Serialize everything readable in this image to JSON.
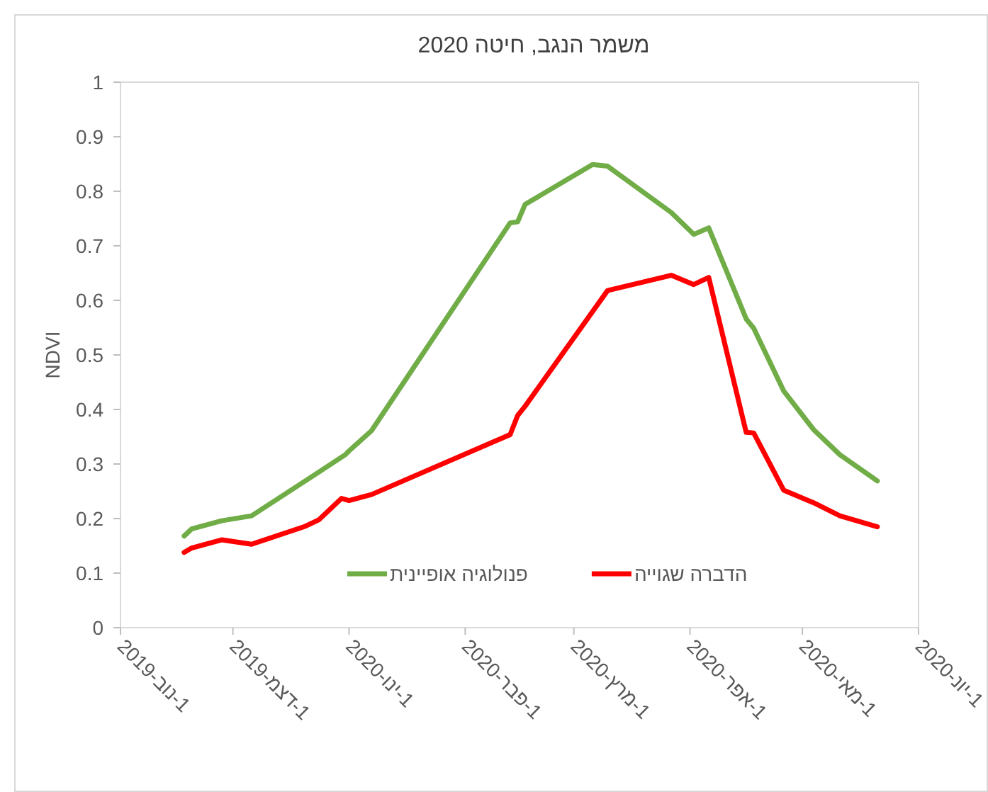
{
  "chart_data": {
    "type": "line",
    "title": "משמר הנגב, חיטה 2020",
    "ylabel": "NDVI",
    "xlim": [
      "2019-11-01",
      "2020-06-01"
    ],
    "xticks": [
      {
        "value": "2019-11-01",
        "label": "1-נוב-2019"
      },
      {
        "value": "2019-12-01",
        "label": "1-דצמ-2019"
      },
      {
        "value": "2020-01-01",
        "label": "1-ינו-2020"
      },
      {
        "value": "2020-02-01",
        "label": "1-פבר-2020"
      },
      {
        "value": "2020-03-01",
        "label": "1-מרץ-2020"
      },
      {
        "value": "2020-04-01",
        "label": "1-אפר-2020"
      },
      {
        "value": "2020-05-01",
        "label": "1-מאי-2020"
      },
      {
        "value": "2020-06-01",
        "label": "1-יונ-2020"
      }
    ],
    "ylim": [
      0,
      1
    ],
    "yticks": [
      0,
      0.1,
      0.2,
      0.3,
      0.4,
      0.5,
      0.6,
      0.7,
      0.8,
      0.9,
      1
    ],
    "legend": "bottom",
    "grid": false,
    "marker": "none",
    "line_style": "solid",
    "series": [
      {
        "name": "פנולוגיה אופיינית",
        "color": "#70ad47",
        "x": [
          "2019-11-18",
          "2019-11-20",
          "2019-11-28",
          "2019-12-06",
          "2019-12-23",
          "2019-12-31",
          "2020-01-01",
          "2020-01-07",
          "2020-02-13",
          "2020-02-15",
          "2020-02-17",
          "2020-03-06",
          "2020-03-10",
          "2020-03-27",
          "2020-04-02",
          "2020-04-06",
          "2020-04-16",
          "2020-04-18",
          "2020-04-26",
          "2020-05-04",
          "2020-05-11",
          "2020-05-21"
        ],
        "values": [
          0.168,
          0.181,
          0.196,
          0.205,
          0.281,
          0.317,
          0.324,
          0.361,
          0.742,
          0.744,
          0.776,
          0.849,
          0.846,
          0.761,
          0.721,
          0.733,
          0.566,
          0.549,
          0.434,
          0.363,
          0.317,
          0.269
        ]
      },
      {
        "name": "הדברה שגוייה",
        "color": "#ff0000",
        "x": [
          "2019-11-18",
          "2019-11-20",
          "2019-11-28",
          "2019-12-06",
          "2019-12-20",
          "2019-12-24",
          "2019-12-30",
          "2020-01-01",
          "2020-01-07",
          "2020-02-13",
          "2020-02-15",
          "2020-02-17",
          "2020-03-10",
          "2020-03-27",
          "2020-04-02",
          "2020-04-06",
          "2020-04-16",
          "2020-04-18",
          "2020-04-26",
          "2020-05-04",
          "2020-05-11",
          "2020-05-21"
        ],
        "values": [
          0.138,
          0.146,
          0.161,
          0.153,
          0.185,
          0.198,
          0.237,
          0.233,
          0.244,
          0.354,
          0.389,
          0.406,
          0.618,
          0.646,
          0.629,
          0.642,
          0.358,
          0.357,
          0.252,
          0.229,
          0.205,
          0.185
        ]
      }
    ]
  }
}
